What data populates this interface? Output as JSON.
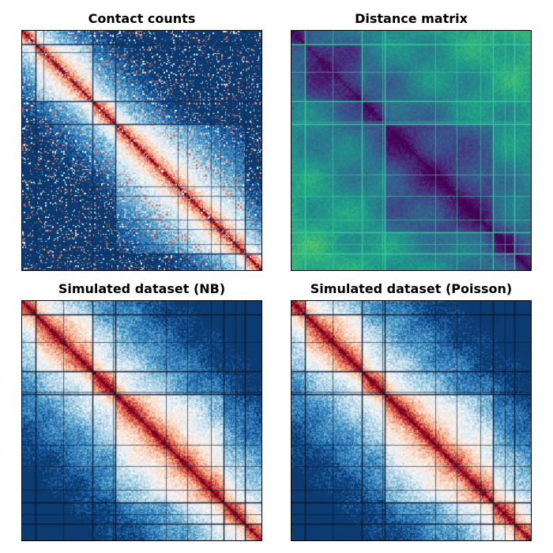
{
  "chart_data": [
    {
      "type": "heatmap",
      "title": "Contact counts",
      "colormap": "RdBu_r",
      "line_color": "#0b2f5c",
      "boundaries": [
        0.055,
        0.295,
        0.39,
        0.93
      ],
      "extra_lines": [
        0.09,
        0.65,
        0.69,
        0.79,
        0.83,
        0.89
      ],
      "pattern": "contact"
    },
    {
      "type": "heatmap",
      "title": "Distance matrix",
      "colormap": "viridis",
      "line_color": "#3cc7a0",
      "boundaries": [
        0.055,
        0.295,
        0.39,
        0.84,
        0.93
      ],
      "extra_lines": [
        0.17,
        0.38,
        0.6,
        0.69,
        0.79,
        0.89
      ],
      "pattern": "distance"
    },
    {
      "type": "heatmap",
      "title": "Simulated dataset (NB)",
      "colormap": "RdBu_r",
      "line_color": "#0b1b33",
      "boundaries": [
        0.055,
        0.295,
        0.39,
        0.84,
        0.93
      ],
      "extra_lines": [
        0.17,
        0.38,
        0.6,
        0.69,
        0.79,
        0.89
      ],
      "pattern": "simulated"
    },
    {
      "type": "heatmap",
      "title": "Simulated dataset (Poisson)",
      "colormap": "RdBu_r",
      "line_color": "#0b1b33",
      "boundaries": [
        0.055,
        0.295,
        0.39,
        0.84,
        0.93
      ],
      "extra_lines": [
        0.17,
        0.38,
        0.6,
        0.69,
        0.79,
        0.89
      ],
      "pattern": "simulated"
    }
  ]
}
